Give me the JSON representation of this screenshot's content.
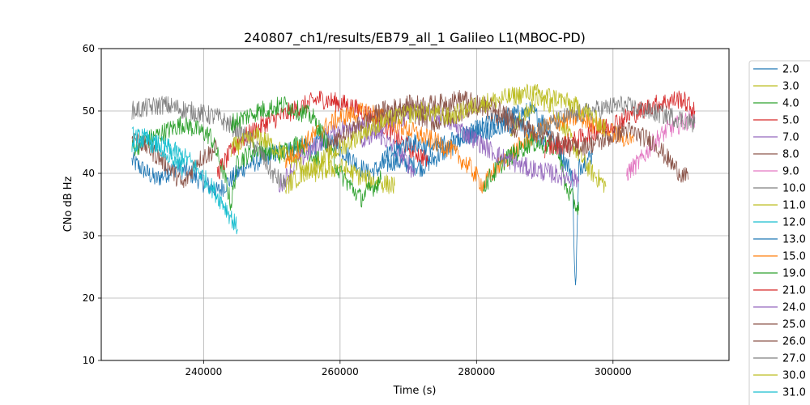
{
  "chart_data": {
    "type": "line",
    "title": "240807_ch1/results/EB79_all_1 Galileo L1(MBOC-PD)",
    "xlabel": "Time (s)",
    "ylabel": "CNo dB Hz",
    "xlim": [
      225000,
      317000
    ],
    "ylim": [
      10,
      60
    ],
    "x_ticks": [
      240000,
      260000,
      280000,
      300000
    ],
    "x_tick_labels": [
      "240000",
      "260000",
      "280000",
      "300000"
    ],
    "y_ticks": [
      10,
      20,
      30,
      40,
      50,
      60
    ],
    "y_tick_labels": [
      "10",
      "20",
      "30",
      "40",
      "50",
      "60"
    ],
    "grid": true,
    "legend_position": "outside-right",
    "series": [
      {
        "name": "2.0",
        "color": "#1f77b4",
        "segments": [
          [
            [
              229500,
              42
            ],
            [
              233000,
              39
            ],
            [
              236000,
              41
            ],
            [
              238000,
              40
            ],
            [
              242000,
              37
            ],
            [
              246000,
              41
            ],
            [
              250000,
              43
            ],
            [
              254000,
              44
            ],
            [
              258000,
              45
            ],
            [
              260000,
              44
            ],
            [
              264000,
              40
            ],
            [
              268000,
              42
            ],
            [
              272000,
              41
            ],
            [
              276000,
              44
            ],
            [
              280000,
              47
            ],
            [
              284000,
              49
            ],
            [
              288000,
              50
            ],
            [
              290000,
              48
            ],
            [
              292000,
              44
            ],
            [
              294000,
              40
            ],
            [
              294500,
              21
            ],
            [
              295000,
              41
            ],
            [
              297000,
              43
            ]
          ]
        ]
      },
      {
        "name": "3.0",
        "color": "#bcbd22",
        "segments": [
          [
            [
              285000,
              47
            ],
            [
              287000,
              49
            ],
            [
              289000,
              52
            ],
            [
              291000,
              51
            ],
            [
              293000,
              47
            ],
            [
              295000,
              43
            ],
            [
              297000,
              40
            ],
            [
              299000,
              38
            ]
          ]
        ]
      },
      {
        "name": "4.0",
        "color": "#2ca02c",
        "segments": [
          [
            [
              229500,
              44
            ],
            [
              233000,
              46
            ],
            [
              237000,
              48
            ],
            [
              241000,
              46
            ],
            [
              243000,
              40
            ],
            [
              244000,
              35
            ],
            [
              245000,
              42
            ],
            [
              248000,
              44
            ],
            [
              251000,
              43
            ],
            [
              254000,
              45
            ],
            [
              257000,
              42
            ]
          ]
        ]
      },
      {
        "name": "5.0",
        "color": "#d62728",
        "segments": [
          [
            [
              242000,
              40
            ],
            [
              245000,
              45
            ],
            [
              249000,
              48
            ],
            [
              253000,
              50
            ],
            [
              257000,
              52
            ],
            [
              261000,
              51
            ],
            [
              265000,
              49
            ],
            [
              269000,
              45
            ],
            [
              273000,
              42
            ]
          ]
        ]
      },
      {
        "name": "7.0",
        "color": "#9467bd",
        "segments": [
          [
            [
              251000,
              38
            ],
            [
              254000,
              42
            ],
            [
              258000,
              46
            ],
            [
              262000,
              48
            ],
            [
              266000,
              46
            ],
            [
              269000,
              43
            ],
            [
              271000,
              40
            ]
          ]
        ]
      },
      {
        "name": "8.0",
        "color": "#8c564b",
        "segments": [
          [
            [
              229500,
              46
            ],
            [
              232000,
              44
            ],
            [
              235000,
              41
            ],
            [
              237000,
              38
            ],
            [
              239000,
              42
            ],
            [
              242000,
              44
            ]
          ]
        ]
      },
      {
        "name": "9.0",
        "color": "#e377c2",
        "segments": [
          [
            [
              302000,
              40
            ],
            [
              304000,
              42
            ],
            [
              306000,
              45
            ],
            [
              308000,
              47
            ],
            [
              310000,
              48
            ],
            [
              312000,
              49
            ]
          ]
        ]
      },
      {
        "name": "10.0",
        "color": "#7f7f7f",
        "segments": [
          [
            [
              229500,
              50
            ],
            [
              234000,
              51
            ],
            [
              238000,
              50
            ],
            [
              242000,
              49
            ],
            [
              245000,
              47
            ],
            [
              248000,
              44
            ],
            [
              250000,
              40
            ],
            [
              252000,
              38
            ]
          ]
        ]
      },
      {
        "name": "11.0",
        "color": "#bcbd22",
        "segments": [
          [
            [
              244000,
              44
            ],
            [
              248000,
              46
            ],
            [
              252000,
              43
            ],
            [
              256000,
              40
            ],
            [
              260000,
              41
            ],
            [
              264000,
              39
            ],
            [
              268000,
              38
            ]
          ]
        ]
      },
      {
        "name": "12.0",
        "color": "#17becf",
        "segments": [
          [
            [
              229500,
              46
            ],
            [
              232000,
              45
            ],
            [
              235000,
              44
            ],
            [
              238000,
              42
            ],
            [
              241000,
              38
            ],
            [
              243000,
              35
            ],
            [
              245000,
              31
            ]
          ]
        ]
      },
      {
        "name": "13.0",
        "color": "#1f77b4",
        "segments": [
          [
            [
              266000,
              42
            ],
            [
              270000,
              45
            ],
            [
              274000,
              44
            ],
            [
              278000,
              46
            ],
            [
              282000,
              47
            ],
            [
              286000,
              48
            ],
            [
              290000,
              45
            ]
          ]
        ]
      },
      {
        "name": "15.0",
        "color": "#ff7f0e",
        "segments": [
          [
            [
              252000,
              42
            ],
            [
              256000,
              46
            ],
            [
              260000,
              49
            ],
            [
              264000,
              50
            ],
            [
              268000,
              48
            ],
            [
              272000,
              46
            ],
            [
              276000,
              44
            ],
            [
              279000,
              41
            ],
            [
              281000,
              38
            ],
            [
              283000,
              41
            ],
            [
              287000,
              45
            ],
            [
              291000,
              48
            ],
            [
              295000,
              49
            ],
            [
              299000,
              47
            ],
            [
              303000,
              45
            ]
          ]
        ]
      },
      {
        "name": "19.0",
        "color": "#2ca02c",
        "segments": [
          [
            [
              244000,
              48
            ],
            [
              248000,
              50
            ],
            [
              252000,
              51
            ],
            [
              256000,
              49
            ],
            [
              258000,
              45
            ],
            [
              260000,
              40
            ],
            [
              263000,
              36
            ],
            [
              266000,
              39
            ]
          ],
          [
            [
              281000,
              38
            ],
            [
              284000,
              42
            ],
            [
              288000,
              45
            ],
            [
              292000,
              44
            ],
            [
              293000,
              38
            ],
            [
              294000,
              36
            ],
            [
              295000,
              34
            ]
          ]
        ]
      },
      {
        "name": "21.0",
        "color": "#d62728",
        "segments": [
          [
            [
              290000,
              44
            ],
            [
              294000,
              45
            ],
            [
              298000,
              47
            ],
            [
              302000,
              49
            ],
            [
              306000,
              51
            ],
            [
              310000,
              52
            ],
            [
              312000,
              50
            ]
          ]
        ]
      },
      {
        "name": "24.0",
        "color": "#9467bd",
        "segments": [
          [
            [
              263000,
              45
            ],
            [
              267000,
              48
            ],
            [
              271000,
              50
            ],
            [
              275000,
              49
            ],
            [
              279000,
              46
            ],
            [
              283000,
              43
            ],
            [
              287000,
              41
            ],
            [
              291000,
              40
            ],
            [
              295000,
              39
            ]
          ]
        ]
      },
      {
        "name": "25.0",
        "color": "#8c564b",
        "segments": [
          [
            [
              266000,
              49
            ],
            [
              270000,
              50
            ],
            [
              274000,
              48
            ],
            [
              278000,
              50
            ],
            [
              282000,
              51
            ],
            [
              286000,
              48
            ],
            [
              290000,
              46
            ],
            [
              294000,
              44
            ],
            [
              298000,
              45
            ],
            [
              302000,
              47
            ],
            [
              306000,
              45
            ],
            [
              309000,
              41
            ],
            [
              311000,
              39
            ]
          ]
        ]
      },
      {
        "name": "26.0",
        "color": "#8c564b",
        "segments": [
          [
            [
              258000,
              44
            ],
            [
              262000,
              47
            ],
            [
              266000,
              50
            ],
            [
              270000,
              51
            ],
            [
              274000,
              51
            ],
            [
              278000,
              52
            ],
            [
              282000,
              50
            ],
            [
              286000,
              47
            ]
          ]
        ]
      },
      {
        "name": "27.0",
        "color": "#7f7f7f",
        "segments": [
          [
            [
              289000,
              47
            ],
            [
              293000,
              49
            ],
            [
              297000,
              50
            ],
            [
              301000,
              51
            ],
            [
              305000,
              50
            ],
            [
              309000,
              49
            ],
            [
              312000,
              48
            ]
          ]
        ]
      },
      {
        "name": "30.0",
        "color": "#bcbd22",
        "segments": [
          [
            [
              252000,
              38
            ],
            [
              256000,
              41
            ],
            [
              260000,
              44
            ],
            [
              264000,
              47
            ],
            [
              268000,
              49
            ],
            [
              272000,
              50
            ],
            [
              276000,
              49
            ],
            [
              280000,
              51
            ],
            [
              284000,
              52
            ],
            [
              288000,
              53
            ],
            [
              292000,
              52
            ],
            [
              296000,
              50
            ],
            [
              299000,
              47
            ]
          ]
        ]
      },
      {
        "name": "31.0",
        "color": "#17becf",
        "segments": [
          [
            [
              229500,
              44
            ],
            [
              231000,
              46
            ],
            [
              233000,
              45
            ],
            [
              235000,
              43
            ],
            [
              237000,
              41
            ]
          ]
        ]
      }
    ]
  }
}
